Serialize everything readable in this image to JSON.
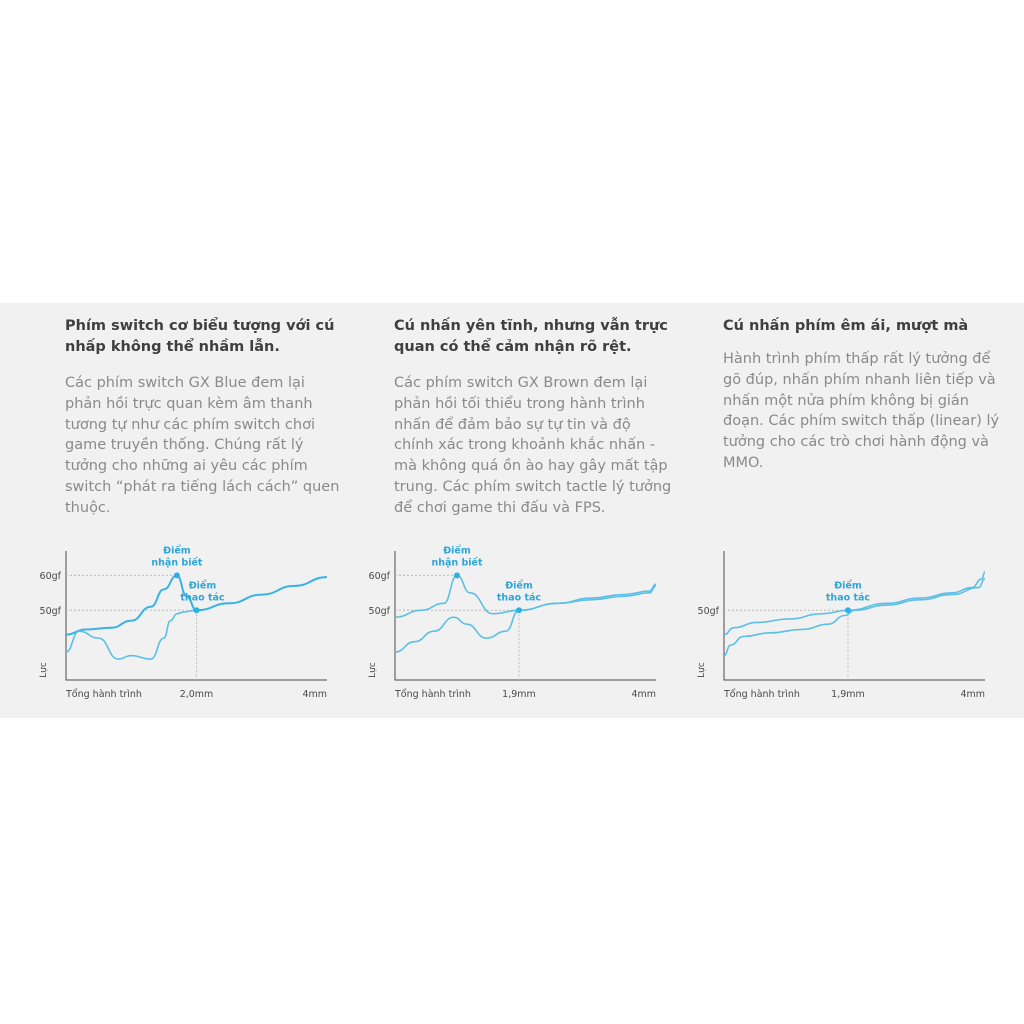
{
  "columns": [
    {
      "title": "Phím switch cơ biểu tượng với cú nhấp không thể nhầm lẫn.",
      "body": "Các phím switch GX Blue đem lại phản hồi trực quan kèm âm thanh tương tự như các phím switch chơi game truyền thống. Chúng rất lý tưởng cho những ai yêu các phím switch “phát ra tiếng lách cách” quen thuộc."
    },
    {
      "title": "Cú nhấn yên tĩnh, nhưng vẫn trực quan có thể cảm nhận rõ rệt.",
      "body": "Các phím switch GX Brown đem lại phản hồi tối thiểu trong hành trình nhấn để đảm bảo sự tự tin và độ chính xác trong khoảnh khắc nhấn - mà không quá ồn ào hay gây mất tập trung. Các phím switch tactle lý tưởng để chơi game thi đấu và FPS."
    },
    {
      "title": "Cú nhấn phím êm ái, mượt mà",
      "body": "Hành trình phím thấp rất lý tưởng để gõ đúp, nhấn phím nhanh liên tiếp và nhấn một nửa phím không bị gián đoạn. Các phím switch thấp (linear) lý tưởng cho các trò chơi hành động và MMO."
    }
  ],
  "chart_data": [
    {
      "type": "line",
      "xlabel": "Tổng hành trình",
      "ylabel": "Lực",
      "xlim": [
        0,
        4
      ],
      "x_ticks": [
        {
          "value": 2.0,
          "label": "2,0mm"
        },
        {
          "value": 4,
          "label": "4mm"
        }
      ],
      "y_ticks": [
        {
          "value": 60,
          "label": "60gf"
        },
        {
          "value": 50,
          "label": "50gf"
        }
      ],
      "ylim": [
        30,
        67
      ],
      "colors": {
        "press": "#39b3e6",
        "release": "#5bbfe6"
      },
      "annotations": [
        {
          "label_lines": [
            "Điểm",
            "nhận biết"
          ],
          "x": 1.7,
          "y": 60
        },
        {
          "label_lines": [
            "Điểm",
            "thao tác"
          ],
          "x": 2.0,
          "y": 50
        }
      ],
      "series": [
        {
          "x": [
            0,
            0.3,
            0.7,
            1.0,
            1.3,
            1.5,
            1.7,
            1.85,
            2.0,
            2.5,
            3.0,
            3.5,
            4.0
          ],
          "y": [
            43,
            44.5,
            45,
            47,
            51,
            56,
            60,
            54,
            50,
            52,
            54.5,
            57,
            59.5
          ]
        },
        {
          "x": [
            0,
            0.2,
            0.5,
            0.8,
            1.0,
            1.3,
            1.5,
            1.6,
            1.7,
            1.8,
            2.0
          ],
          "y": [
            38,
            44,
            42,
            36,
            37,
            36,
            42,
            47,
            49,
            49.5,
            50
          ]
        }
      ]
    },
    {
      "type": "line",
      "xlabel": "Tổng hành trình",
      "ylabel": "Lực",
      "xlim": [
        0,
        4
      ],
      "x_ticks": [
        {
          "value": 1.9,
          "label": "1,9mm"
        },
        {
          "value": 4,
          "label": "4mm"
        }
      ],
      "y_ticks": [
        {
          "value": 60,
          "label": "60gf"
        },
        {
          "value": 50,
          "label": "50gf"
        }
      ],
      "ylim": [
        30,
        67
      ],
      "annotations": [
        {
          "label_lines": [
            "Điểm",
            "nhận biết"
          ],
          "x": 0.95,
          "y": 60
        },
        {
          "label_lines": [
            "Điểm",
            "thao tác"
          ],
          "x": 1.9,
          "y": 50
        }
      ],
      "series": [
        {
          "x": [
            0,
            0.4,
            0.75,
            0.95,
            1.15,
            1.5,
            1.9,
            2.5,
            3.0,
            3.5,
            3.9,
            4.0
          ],
          "y": [
            48,
            50,
            52,
            60,
            55,
            49,
            50,
            52,
            53,
            54,
            55,
            57
          ]
        },
        {
          "x": [
            0,
            0.3,
            0.6,
            0.9,
            1.1,
            1.4,
            1.7,
            1.9,
            2.5,
            3.0,
            3.5,
            3.9,
            4.0
          ],
          "y": [
            38,
            41,
            44,
            48,
            46,
            42,
            44,
            50,
            52,
            53.5,
            54.5,
            55.5,
            57.5
          ]
        }
      ]
    },
    {
      "type": "line",
      "xlabel": "Tổng hành trình",
      "ylabel": "Lực",
      "xlim": [
        0,
        4
      ],
      "x_ticks": [
        {
          "value": 1.9,
          "label": "1,9mm"
        },
        {
          "value": 4,
          "label": "4mm"
        }
      ],
      "y_ticks": [
        {
          "value": 50,
          "label": "50gf"
        }
      ],
      "ylim": [
        30,
        67
      ],
      "annotations": [
        {
          "label_lines": [
            "Điểm",
            "thao tác"
          ],
          "x": 1.9,
          "y": 50
        }
      ],
      "series": [
        {
          "x": [
            0,
            0.15,
            0.5,
            1.0,
            1.5,
            1.9,
            2.5,
            3.0,
            3.5,
            3.8,
            3.95,
            4.0
          ],
          "y": [
            43,
            45,
            46.5,
            47.5,
            49,
            50,
            52,
            53.5,
            55,
            56.5,
            59,
            61
          ]
        },
        {
          "x": [
            0,
            0.1,
            0.3,
            0.7,
            1.2,
            1.6,
            1.85,
            2.0,
            2.5,
            3.0,
            3.5,
            3.9,
            4.0
          ],
          "y": [
            37,
            40,
            42.5,
            43.5,
            44.5,
            46,
            48.5,
            50,
            51.5,
            53,
            54.5,
            56.5,
            59
          ]
        }
      ]
    }
  ]
}
